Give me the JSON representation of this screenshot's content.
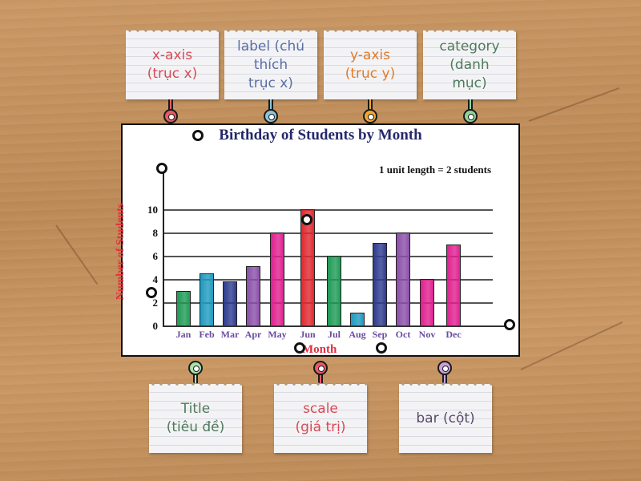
{
  "activity": {
    "type": "labelled-diagram",
    "top_labels": [
      {
        "id": "x-axis",
        "line1": "x-axis",
        "line2": "(trục x)",
        "color": "#d84a55",
        "pin_color": "#e85a66"
      },
      {
        "id": "label-x",
        "line1": "label (chú",
        "line2": "thích",
        "line3": "trục x)",
        "color": "#5a6ea8",
        "pin_color": "#8fc4d6"
      },
      {
        "id": "y-axis",
        "line1": "y-axis",
        "line2": "(trục y)",
        "color": "#e07a2a",
        "pin_color": "#f2a830"
      },
      {
        "id": "category",
        "line1": "category",
        "line2": "(danh",
        "line3": "mục)",
        "color": "#4f7a5d",
        "pin_color": "#8fd49a"
      }
    ],
    "bottom_labels": [
      {
        "id": "title",
        "line1": "Title",
        "line2": "(tiêu đề)",
        "color": "#4f7a5d",
        "pin_color": "#a8e3a8"
      },
      {
        "id": "scale",
        "line1": "scale",
        "line2": "(giá trị)",
        "color": "#d84a55",
        "pin_color": "#e85a66"
      },
      {
        "id": "bar",
        "line1": "bar (cột)",
        "color": "#5a4a6a",
        "pin_color": "#c9a0dc"
      }
    ]
  },
  "chart_data": {
    "type": "bar",
    "title": "Birthday of Students by Month",
    "note": "1 unit length = 2 students",
    "xlabel": "Month",
    "ylabel": "Number of Students",
    "categories": [
      "Jan",
      "Feb",
      "Mar",
      "Apr",
      "May",
      "Jun",
      "Jul",
      "Aug",
      "Sep",
      "Oct",
      "Nov",
      "Dec"
    ],
    "values": [
      3,
      4.5,
      3.8,
      5.1,
      8,
      10,
      6,
      1.1,
      7.1,
      8,
      4,
      7
    ],
    "colors": [
      "#1f9a55",
      "#1f9ac0",
      "#2e3b8f",
      "#8a4fa8",
      "#e0208f",
      "#e0282f",
      "#1f9a55",
      "#1f9ac0",
      "#2e3b8f",
      "#8a4fa8",
      "#e0208f",
      "#e0208f"
    ],
    "yticks": [
      "0",
      "2",
      "4",
      "6",
      "8",
      "10"
    ],
    "ylim": [
      0,
      12
    ],
    "grid": true
  }
}
